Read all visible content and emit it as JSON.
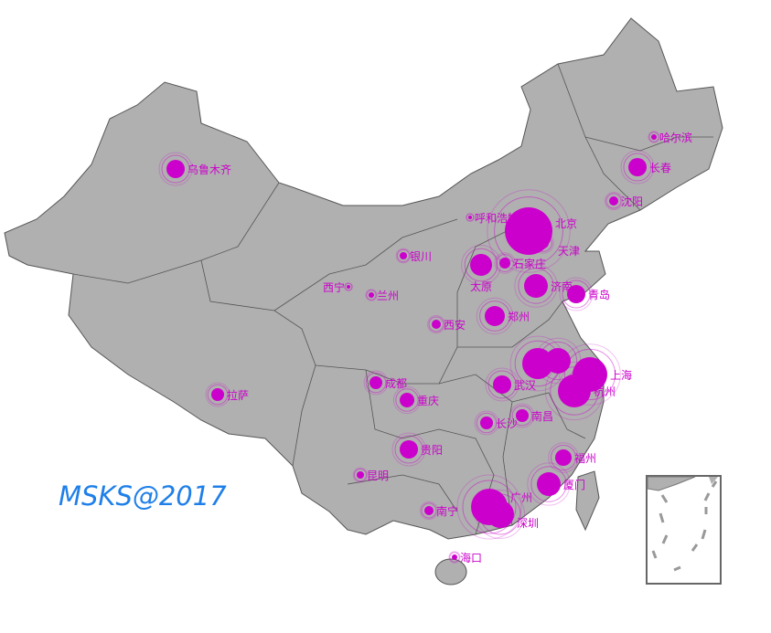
{
  "watermark": "MSKS@2017",
  "colors": {
    "land": "#b0b0b0",
    "border": "#555555",
    "bubble": "#cc00cc",
    "label": "#cc00cc",
    "watermark": "#1f7fe8"
  },
  "cities": [
    {
      "name": "乌鲁木齐",
      "size": 10
    },
    {
      "name": "哈尔滨",
      "size": 3
    },
    {
      "name": "长春",
      "size": 10
    },
    {
      "name": "沈阳",
      "size": 5
    },
    {
      "name": "呼和浩特",
      "size": 2
    },
    {
      "name": "北京",
      "size": 26
    },
    {
      "name": "天津",
      "size": 6
    },
    {
      "name": "太原",
      "size": 12
    },
    {
      "name": "石家庄",
      "size": 6
    },
    {
      "name": "银川",
      "size": 4
    },
    {
      "name": "济南",
      "size": 13
    },
    {
      "name": "青岛",
      "size": 10
    },
    {
      "name": "西宁",
      "size": 2
    },
    {
      "name": "兰州",
      "size": 3
    },
    {
      "name": "西安",
      "size": 5
    },
    {
      "name": "郑州",
      "size": 11
    },
    {
      "name": "",
      "size": 17
    },
    {
      "name": "",
      "size": 14
    },
    {
      "name": "上海",
      "size": 19
    },
    {
      "name": "杭州",
      "size": 18
    },
    {
      "name": "武汉",
      "size": 10
    },
    {
      "name": "成都",
      "size": 7
    },
    {
      "name": "重庆",
      "size": 8
    },
    {
      "name": "拉萨",
      "size": 7
    },
    {
      "name": "南昌",
      "size": 7
    },
    {
      "name": "长沙",
      "size": 7
    },
    {
      "name": "贵阳",
      "size": 10
    },
    {
      "name": "昆明",
      "size": 4
    },
    {
      "name": "福州",
      "size": 9
    },
    {
      "name": "厦门",
      "size": 13
    },
    {
      "name": "南宁",
      "size": 5
    },
    {
      "name": "广州",
      "size": 20
    },
    {
      "name": "深圳",
      "size": 15
    },
    {
      "name": "海口",
      "size": 3
    }
  ]
}
